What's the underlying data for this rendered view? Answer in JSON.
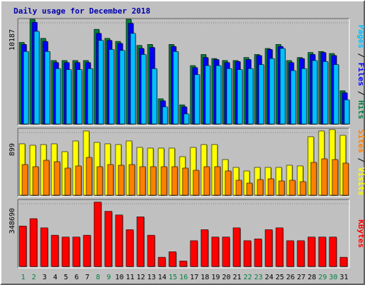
{
  "chart_data": [
    {
      "type": "bar",
      "title": "Daily usage for December 2018",
      "ylabel_parts": [
        "Pages",
        "Files",
        "Hits"
      ],
      "ytick": "10187",
      "ymax": 10187,
      "categories": [
        "1",
        "2",
        "3",
        "4",
        "5",
        "6",
        "7",
        "8",
        "9",
        "10",
        "11",
        "12",
        "13",
        "14",
        "15",
        "16",
        "17",
        "18",
        "19",
        "20",
        "21",
        "22",
        "23",
        "24",
        "25",
        "26",
        "27",
        "28",
        "29",
        "30",
        "31"
      ],
      "weekend_days": [
        "1",
        "2",
        "8",
        "9",
        "15",
        "16",
        "22",
        "23",
        "29",
        "30"
      ],
      "series": [
        {
          "name": "Hits",
          "color": "#008040",
          "values": [
            8100,
            10400,
            8500,
            6300,
            6300,
            6300,
            6300,
            9400,
            8500,
            8200,
            10400,
            7800,
            7900,
            2500,
            7900,
            1900,
            5800,
            6900,
            6500,
            6300,
            6300,
            6600,
            6900,
            7500,
            7900,
            6300,
            6600,
            7100,
            7200,
            7000,
            3300
          ]
        },
        {
          "name": "Files",
          "color": "#0000ff",
          "values": [
            7900,
            10100,
            8200,
            6100,
            6100,
            6100,
            6100,
            9000,
            8300,
            8000,
            10000,
            7500,
            7600,
            2300,
            7700,
            1700,
            5600,
            6600,
            6400,
            6100,
            6200,
            6400,
            6800,
            7400,
            7700,
            6100,
            6500,
            6900,
            7100,
            6800,
            3100
          ]
        },
        {
          "name": "Pages",
          "color": "#00c0ff",
          "values": [
            7200,
            9200,
            7200,
            5500,
            5400,
            5400,
            5500,
            8300,
            7400,
            7300,
            9000,
            6900,
            5500,
            1700,
            7200,
            1000,
            4900,
            5800,
            5800,
            5500,
            5400,
            5500,
            5900,
            6500,
            7500,
            5300,
            5500,
            6300,
            6200,
            5900,
            2400
          ]
        }
      ]
    },
    {
      "type": "bar",
      "ylabel_parts": [
        "Sites",
        "Visits"
      ],
      "ytick": "899",
      "ymax": 899,
      "categories": [
        "1",
        "2",
        "3",
        "4",
        "5",
        "6",
        "7",
        "8",
        "9",
        "10",
        "11",
        "12",
        "13",
        "14",
        "15",
        "16",
        "17",
        "18",
        "19",
        "20",
        "21",
        "22",
        "23",
        "24",
        "25",
        "26",
        "27",
        "28",
        "29",
        "30",
        "31"
      ],
      "series": [
        {
          "name": "Visits",
          "color": "#ffff00",
          "values": [
            720,
            700,
            710,
            720,
            610,
            760,
            900,
            740,
            720,
            710,
            760,
            670,
            660,
            660,
            660,
            540,
            670,
            710,
            710,
            500,
            390,
            340,
            390,
            390,
            390,
            420,
            410,
            820,
            900,
            920,
            840
          ]
        },
        {
          "name": "Sites",
          "color": "#ff8000",
          "values": [
            430,
            400,
            490,
            470,
            380,
            410,
            530,
            400,
            430,
            420,
            430,
            400,
            400,
            400,
            400,
            380,
            350,
            400,
            400,
            340,
            210,
            170,
            220,
            230,
            200,
            210,
            190,
            460,
            510,
            500,
            450
          ]
        }
      ]
    },
    {
      "type": "bar",
      "ylabel_parts": [
        "KBytes"
      ],
      "ytick": "348690",
      "ymax": 348690,
      "categories": [
        "1",
        "2",
        "3",
        "4",
        "5",
        "6",
        "7",
        "8",
        "9",
        "10",
        "11",
        "12",
        "13",
        "14",
        "15",
        "16",
        "17",
        "18",
        "19",
        "20",
        "21",
        "22",
        "23",
        "24",
        "25",
        "26",
        "27",
        "28",
        "29",
        "30",
        "31"
      ],
      "series": [
        {
          "name": "KBytes",
          "color": "#ff0000",
          "values": [
            220000,
            260000,
            210000,
            170000,
            160000,
            160000,
            170000,
            350000,
            300000,
            280000,
            200000,
            270000,
            170000,
            50000,
            80000,
            30000,
            140000,
            200000,
            160000,
            160000,
            210000,
            140000,
            150000,
            200000,
            210000,
            140000,
            140000,
            160000,
            160000,
            160000,
            50000
          ]
        }
      ]
    }
  ]
}
